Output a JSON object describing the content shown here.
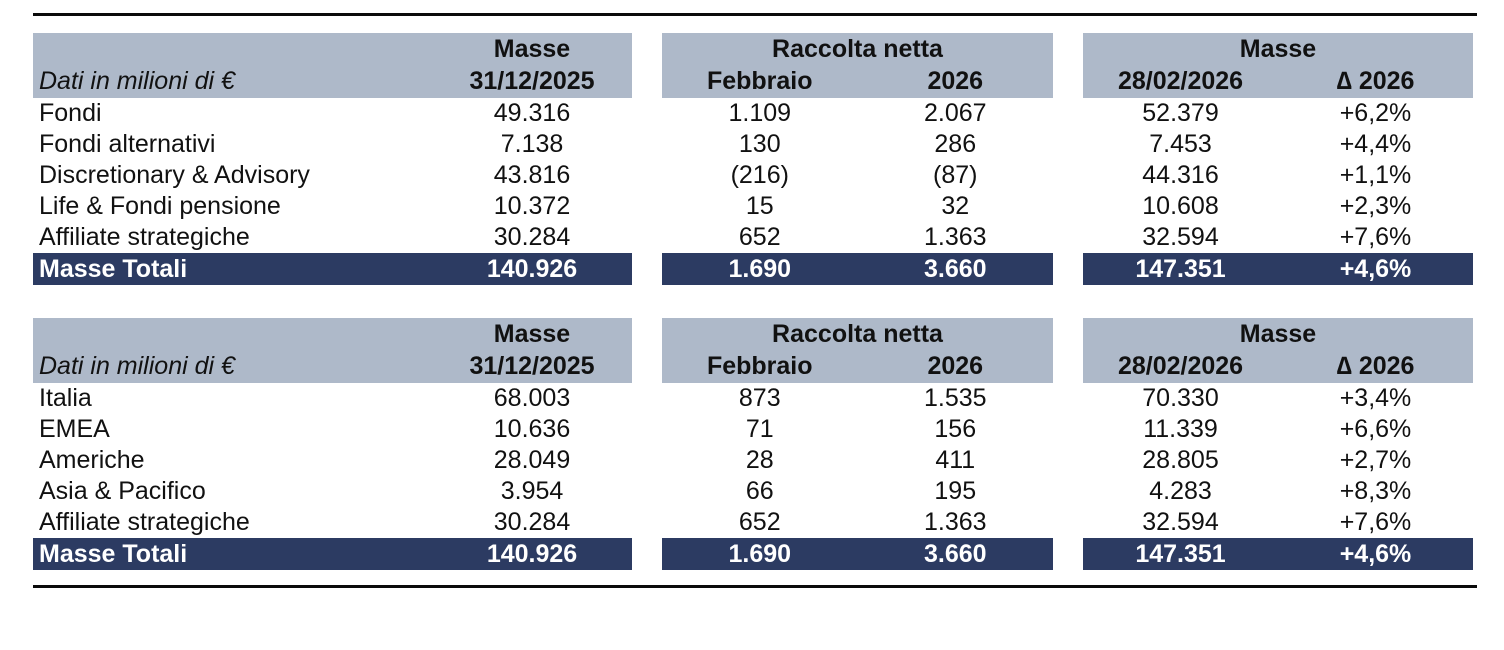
{
  "colors": {
    "header_bg": "#aeb9c9",
    "total_bg": "#2c3b62",
    "total_text": "#ffffff",
    "rule": "#0a0a0a"
  },
  "tables": [
    {
      "header": {
        "note": "Dati in milioni di €",
        "col1_group": "Masse",
        "col1_sub": "31/12/2025",
        "col2_group": "Raccolta netta",
        "col2_sub1": "Febbraio",
        "col2_sub2": "2026",
        "col3_group": "Masse",
        "col3_sub1": "28/02/2026",
        "col3_delta_symbol": "∆",
        "col3_delta_year": "2026"
      },
      "rows": [
        {
          "label": "Fondi",
          "masse_prev": "49.316",
          "netflows_month": "1.109",
          "netflows_ytd": "2.067",
          "masse_cur": "52.379",
          "delta": "+6,2%"
        },
        {
          "label": "Fondi alternativi",
          "masse_prev": "7.138",
          "netflows_month": "130",
          "netflows_ytd": "286",
          "masse_cur": "7.453",
          "delta": "+4,4%"
        },
        {
          "label": "Discretionary & Advisory",
          "masse_prev": "43.816",
          "netflows_month": "(216)",
          "netflows_ytd": "(87)",
          "masse_cur": "44.316",
          "delta": "+1,1%"
        },
        {
          "label": "Life & Fondi pensione",
          "masse_prev": "10.372",
          "netflows_month": "15",
          "netflows_ytd": "32",
          "masse_cur": "10.608",
          "delta": "+2,3%"
        },
        {
          "label": "Affiliate strategiche",
          "masse_prev": "30.284",
          "netflows_month": "652",
          "netflows_ytd": "1.363",
          "masse_cur": "32.594",
          "delta": "+7,6%"
        }
      ],
      "total": {
        "label": "Masse Totali",
        "masse_prev": "140.926",
        "netflows_month": "1.690",
        "netflows_ytd": "3.660",
        "masse_cur": "147.351",
        "delta": "+4,6%"
      }
    },
    {
      "header": {
        "note": "Dati in milioni di €",
        "col1_group": "Masse",
        "col1_sub": "31/12/2025",
        "col2_group": "Raccolta netta",
        "col2_sub1": "Febbraio",
        "col2_sub2": "2026",
        "col3_group": "Masse",
        "col3_sub1": "28/02/2026",
        "col3_delta_symbol": "∆",
        "col3_delta_year": "2026"
      },
      "rows": [
        {
          "label": "Italia",
          "masse_prev": "68.003",
          "netflows_month": "873",
          "netflows_ytd": "1.535",
          "masse_cur": "70.330",
          "delta": "+3,4%"
        },
        {
          "label": "EMEA",
          "masse_prev": "10.636",
          "netflows_month": "71",
          "netflows_ytd": "156",
          "masse_cur": "11.339",
          "delta": "+6,6%"
        },
        {
          "label": "Americhe",
          "masse_prev": "28.049",
          "netflows_month": "28",
          "netflows_ytd": "411",
          "masse_cur": "28.805",
          "delta": "+2,7%"
        },
        {
          "label": "Asia & Pacifico",
          "masse_prev": "3.954",
          "netflows_month": "66",
          "netflows_ytd": "195",
          "masse_cur": "4.283",
          "delta": "+8,3%"
        },
        {
          "label": "Affiliate strategiche",
          "masse_prev": "30.284",
          "netflows_month": "652",
          "netflows_ytd": "1.363",
          "masse_cur": "32.594",
          "delta": "+7,6%"
        }
      ],
      "total": {
        "label": "Masse Totali",
        "masse_prev": "140.926",
        "netflows_month": "1.690",
        "netflows_ytd": "3.660",
        "masse_cur": "147.351",
        "delta": "+4,6%"
      }
    }
  ]
}
